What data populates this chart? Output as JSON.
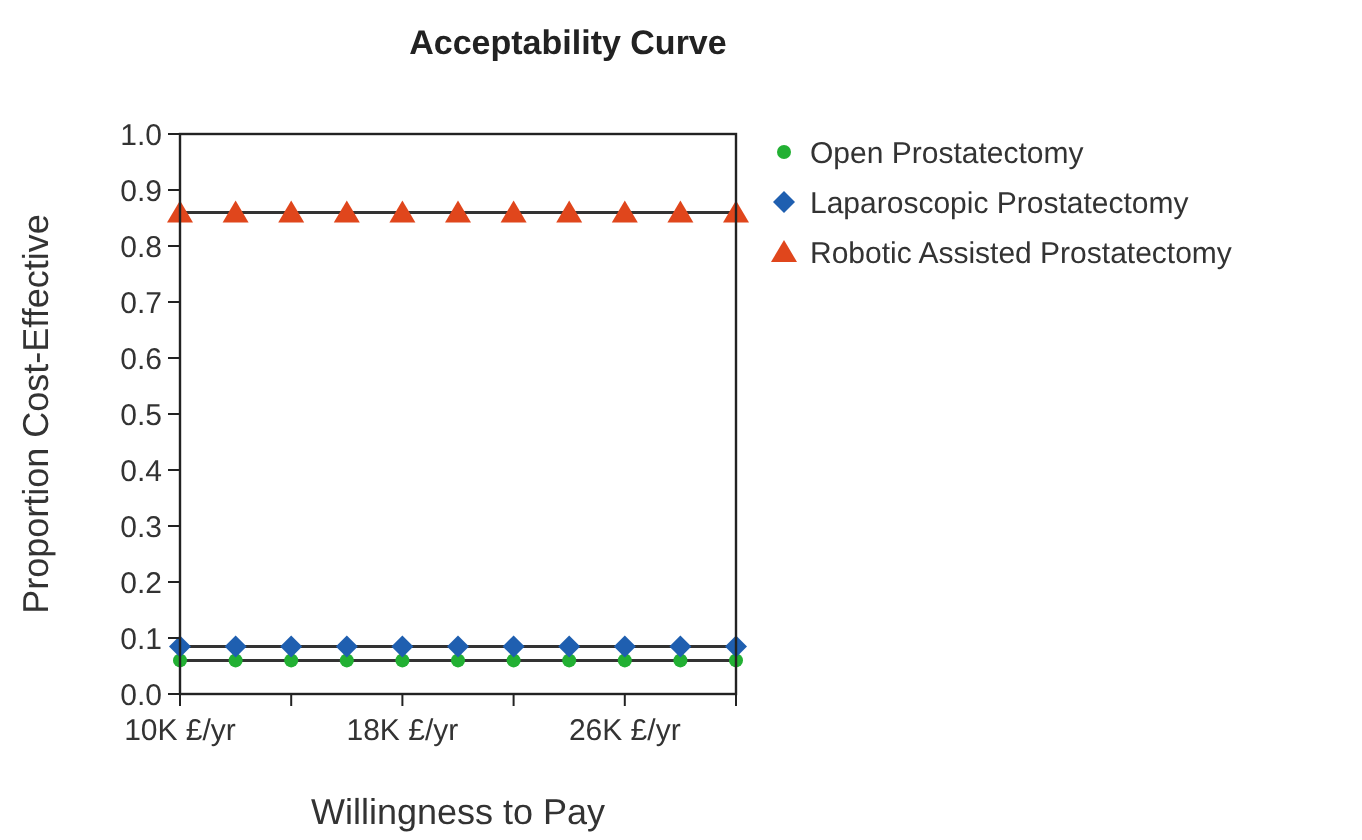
{
  "chart_data": {
    "type": "line",
    "title": "Acceptability Curve",
    "xlabel": "Willingness to Pay",
    "ylabel": "Proportion Cost-Effective",
    "x": [
      10,
      12,
      14,
      16,
      18,
      20,
      22,
      24,
      26,
      28,
      30
    ],
    "series": [
      {
        "name": "Open Prostatectomy",
        "color": "#22b033",
        "marker": "circle",
        "values": [
          0.06,
          0.06,
          0.06,
          0.06,
          0.06,
          0.06,
          0.06,
          0.06,
          0.06,
          0.06,
          0.06
        ]
      },
      {
        "name": "Laparoscopic Prostatectomy",
        "color": "#1f5fb0",
        "marker": "diamond",
        "values": [
          0.085,
          0.085,
          0.085,
          0.085,
          0.085,
          0.085,
          0.085,
          0.085,
          0.085,
          0.085,
          0.085
        ]
      },
      {
        "name": "Robotic Assisted Prostatectomy",
        "color": "#e0461c",
        "marker": "triangle",
        "values": [
          0.86,
          0.86,
          0.86,
          0.86,
          0.86,
          0.86,
          0.86,
          0.86,
          0.86,
          0.86,
          0.86
        ]
      }
    ],
    "xlim": [
      10,
      30
    ],
    "xticks": [
      {
        "value": 10,
        "label": "10K £/yr"
      },
      {
        "value": 14,
        "label": null
      },
      {
        "value": 18,
        "label": "18K £/yr"
      },
      {
        "value": 22,
        "label": null
      },
      {
        "value": 26,
        "label": "26K £/yr"
      },
      {
        "value": 30,
        "label": null
      }
    ],
    "ylim": [
      0,
      1
    ],
    "yticks": [
      {
        "value": 0,
        "label": "0.0"
      },
      0.1,
      0.2,
      0.3,
      0.4,
      0.5,
      0.6,
      0.7,
      0.8,
      0.9,
      {
        "value": 1,
        "label": "1.0"
      }
    ],
    "grid": false,
    "legend": "right",
    "line_style": "solid"
  }
}
